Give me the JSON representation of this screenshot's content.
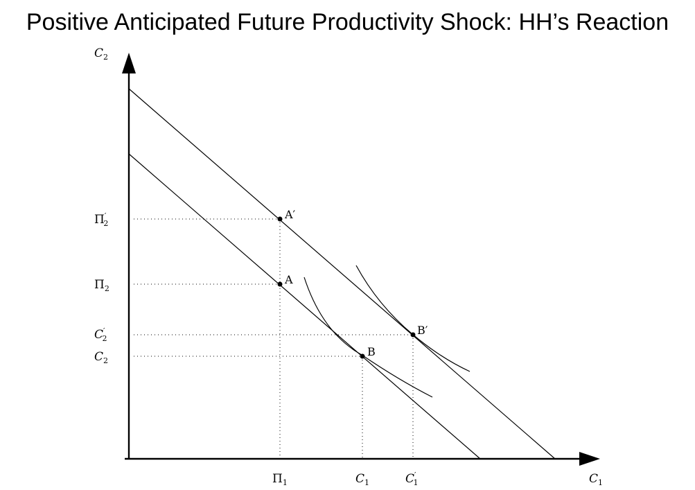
{
  "title": "Positive Anticipated Future Productivity Shock: HH’s Reaction",
  "axes": {
    "y_label": {
      "base": "C",
      "sub": "2"
    },
    "x_label": {
      "base": "C",
      "sub": "1"
    }
  },
  "y_ticks": {
    "pi2_prime": {
      "base": "Π",
      "prime": "′",
      "sub": "2"
    },
    "pi2": {
      "base": "Π",
      "sub": "2"
    },
    "c2_prime": {
      "base": "C",
      "prime": "′",
      "sub": "2"
    },
    "c2": {
      "base": "C",
      "sub": "2"
    }
  },
  "x_ticks": {
    "pi1": {
      "base": "Π",
      "sub": "1"
    },
    "c1": {
      "base": "C",
      "sub": "1"
    },
    "c1_prime": {
      "base": "C",
      "prime": "′",
      "sub": "1"
    }
  },
  "points": {
    "a_prime": "A′",
    "a": "A",
    "b": "B",
    "b_prime": "B′"
  }
}
